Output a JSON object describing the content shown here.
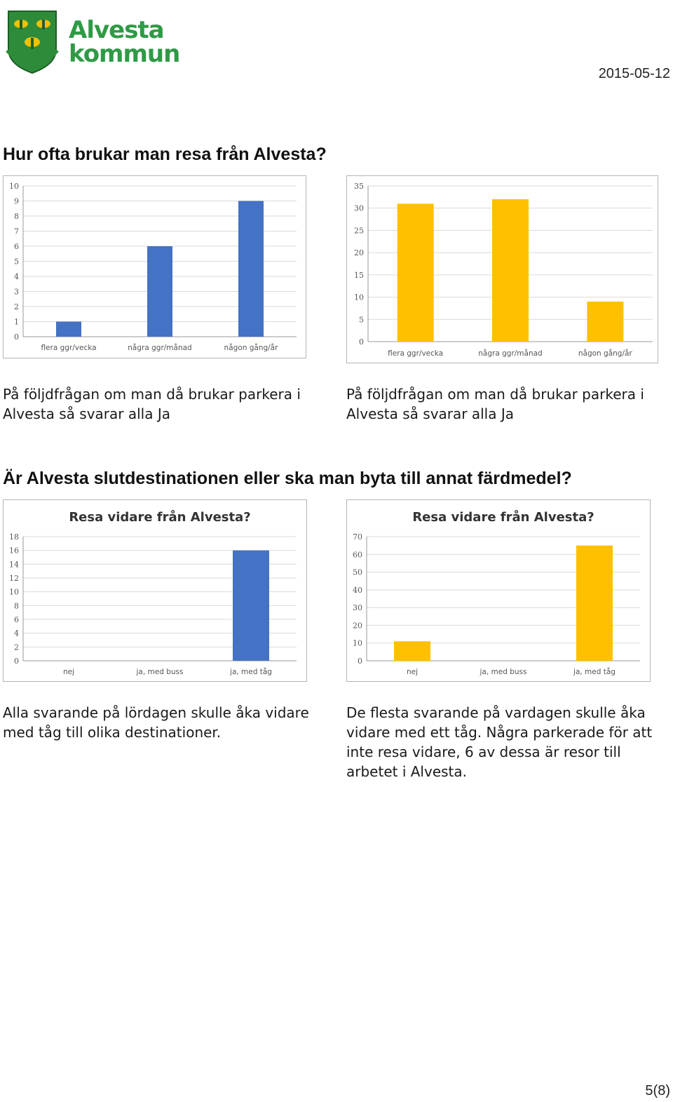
{
  "header": {
    "logo_line1": "Alvesta",
    "logo_line2": "kommun",
    "date": "2015-05-12"
  },
  "section1": {
    "heading": "Hur ofta brukar man resa från Alvesta?",
    "caption_left": "På följdfrågan om man då brukar parkera i Alvesta så svarar alla Ja",
    "caption_right": "På följdfrågan om man då brukar parkera i Alvesta så svarar alla Ja"
  },
  "section2": {
    "heading": "Är Alvesta slutdestinationen eller ska man byta till annat färdmedel?",
    "caption_left": "Alla svarande på lördagen skulle åka vidare med tåg till olika destinationer.",
    "caption_right": "De flesta svarande på vardagen skulle åka vidare med ett tåg. Några parkerade för att inte resa vidare, 6 av dessa är resor till arbetet i Alvesta."
  },
  "footer": {
    "page": "5(8)"
  },
  "chart_data": [
    {
      "type": "bar",
      "title": "",
      "categories": [
        "flera ggr/vecka",
        "några ggr/månad",
        "någon gång/år"
      ],
      "values": [
        1,
        6,
        9
      ],
      "ylim": [
        0,
        10
      ],
      "ticks": [
        0,
        1,
        2,
        3,
        4,
        5,
        6,
        7,
        8,
        9,
        10
      ],
      "color": "#4472c4",
      "grid": true
    },
    {
      "type": "bar",
      "title": "",
      "categories": [
        "flera ggr/vecka",
        "några ggr/månad",
        "någon gång/år"
      ],
      "values": [
        31,
        32,
        9
      ],
      "ylim": [
        0,
        35
      ],
      "ticks": [
        0,
        5,
        10,
        15,
        20,
        25,
        30,
        35
      ],
      "color": "#ffc000",
      "grid": true
    },
    {
      "type": "bar",
      "title": "Resa vidare från Alvesta?",
      "categories": [
        "nej",
        "ja, med buss",
        "ja, med tåg"
      ],
      "values": [
        0,
        0,
        16
      ],
      "ylim": [
        0,
        18
      ],
      "ticks": [
        0,
        2,
        4,
        6,
        8,
        10,
        12,
        14,
        16,
        18
      ],
      "color": "#4472c4",
      "grid": true
    },
    {
      "type": "bar",
      "title": "Resa vidare från Alvesta?",
      "categories": [
        "nej",
        "ja, med buss",
        "ja, med tåg"
      ],
      "values": [
        11,
        0,
        65
      ],
      "ylim": [
        0,
        70
      ],
      "ticks": [
        0,
        10,
        20,
        30,
        40,
        50,
        60,
        70
      ],
      "color": "#ffc000",
      "grid": true
    }
  ]
}
